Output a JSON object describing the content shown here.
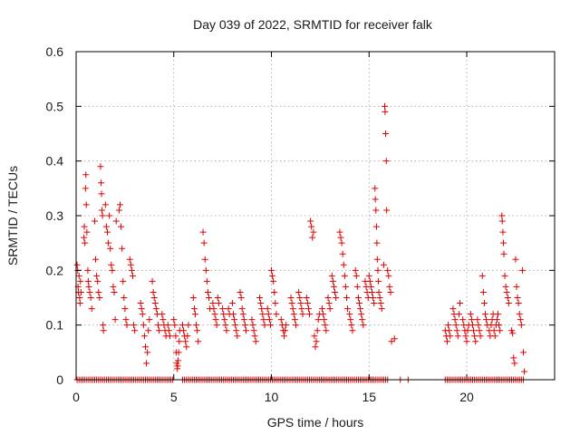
{
  "chart_data": {
    "type": "scatter",
    "title": "Day 039 of 2022, SRMTID for receiver falk",
    "xlabel": "GPS time / hours",
    "ylabel": "SRMTID / TECUs",
    "xlim": [
      0,
      24.5
    ],
    "ylim": [
      0,
      0.6
    ],
    "xticks": [
      0,
      5,
      10,
      15,
      20
    ],
    "xtick_labels": [
      "0",
      "5",
      "10",
      "15",
      "20"
    ],
    "yticks": [
      0,
      0.1,
      0.2,
      0.3,
      0.4,
      0.5,
      0.6
    ],
    "ytick_labels": [
      "0",
      "0.1",
      "0.2",
      "0.3",
      "0.4",
      "0.5",
      "0.6"
    ],
    "grid": true,
    "marker": "+",
    "color": "#e00000",
    "zero_points": {
      "y": 0,
      "x_ranges": [
        [
          0.05,
          4.95
        ],
        [
          5.45,
          15.95
        ],
        [
          16.6,
          16.65
        ],
        [
          17.0,
          17.05
        ],
        [
          18.9,
          22.95
        ]
      ],
      "step": 0.1
    },
    "points": [
      [
        0.05,
        0.21
      ],
      [
        0.08,
        0.2
      ],
      [
        0.1,
        0.17
      ],
      [
        0.12,
        0.16
      ],
      [
        0.15,
        0.19
      ],
      [
        0.18,
        0.15
      ],
      [
        0.2,
        0.14
      ],
      [
        0.22,
        0.18
      ],
      [
        0.25,
        0.16
      ],
      [
        0.4,
        0.26
      ],
      [
        0.42,
        0.28
      ],
      [
        0.45,
        0.25
      ],
      [
        0.48,
        0.35
      ],
      [
        0.5,
        0.375
      ],
      [
        0.52,
        0.32
      ],
      [
        0.55,
        0.27
      ],
      [
        0.6,
        0.2
      ],
      [
        0.62,
        0.18
      ],
      [
        0.65,
        0.17
      ],
      [
        0.7,
        0.16
      ],
      [
        0.75,
        0.15
      ],
      [
        0.8,
        0.13
      ],
      [
        0.95,
        0.29
      ],
      [
        1.0,
        0.22
      ],
      [
        1.05,
        0.19
      ],
      [
        1.1,
        0.18
      ],
      [
        1.15,
        0.16
      ],
      [
        1.2,
        0.15
      ],
      [
        1.25,
        0.39
      ],
      [
        1.28,
        0.36
      ],
      [
        1.3,
        0.34
      ],
      [
        1.32,
        0.31
      ],
      [
        1.35,
        0.3
      ],
      [
        1.38,
        0.1
      ],
      [
        1.4,
        0.09
      ],
      [
        1.5,
        0.32
      ],
      [
        1.55,
        0.28
      ],
      [
        1.6,
        0.27
      ],
      [
        1.65,
        0.25
      ],
      [
        1.7,
        0.3
      ],
      [
        1.75,
        0.24
      ],
      [
        1.8,
        0.21
      ],
      [
        1.85,
        0.2
      ],
      [
        1.9,
        0.17
      ],
      [
        1.95,
        0.16
      ],
      [
        2.0,
        0.11
      ],
      [
        2.05,
        0.29
      ],
      [
        2.2,
        0.31
      ],
      [
        2.25,
        0.32
      ],
      [
        2.3,
        0.28
      ],
      [
        2.35,
        0.24
      ],
      [
        2.4,
        0.18
      ],
      [
        2.45,
        0.15
      ],
      [
        2.5,
        0.13
      ],
      [
        2.55,
        0.11
      ],
      [
        2.6,
        0.1
      ],
      [
        2.75,
        0.22
      ],
      [
        2.8,
        0.21
      ],
      [
        2.85,
        0.2
      ],
      [
        2.9,
        0.19
      ],
      [
        2.95,
        0.1
      ],
      [
        3.0,
        0.09
      ],
      [
        3.3,
        0.14
      ],
      [
        3.35,
        0.13
      ],
      [
        3.4,
        0.12
      ],
      [
        3.45,
        0.1
      ],
      [
        3.5,
        0.08
      ],
      [
        3.55,
        0.06
      ],
      [
        3.6,
        0.03
      ],
      [
        3.65,
        0.05
      ],
      [
        3.7,
        0.09
      ],
      [
        3.75,
        0.11
      ],
      [
        3.9,
        0.18
      ],
      [
        3.95,
        0.16
      ],
      [
        4.0,
        0.15
      ],
      [
        4.05,
        0.14
      ],
      [
        4.1,
        0.13
      ],
      [
        4.15,
        0.12
      ],
      [
        4.2,
        0.1
      ],
      [
        4.25,
        0.09
      ],
      [
        4.4,
        0.12
      ],
      [
        4.45,
        0.11
      ],
      [
        4.5,
        0.1
      ],
      [
        4.55,
        0.09
      ],
      [
        4.6,
        0.08
      ],
      [
        4.7,
        0.1
      ],
      [
        4.75,
        0.09
      ],
      [
        4.8,
        0.08
      ],
      [
        5.0,
        0.11
      ],
      [
        5.05,
        0.1
      ],
      [
        5.1,
        0.08
      ],
      [
        5.12,
        0.05
      ],
      [
        5.15,
        0.03
      ],
      [
        5.18,
        0.02
      ],
      [
        5.2,
        0.025
      ],
      [
        5.22,
        0.035
      ],
      [
        5.25,
        0.05
      ],
      [
        5.28,
        0.07
      ],
      [
        5.3,
        0.09
      ],
      [
        5.45,
        0.1
      ],
      [
        5.5,
        0.09
      ],
      [
        5.55,
        0.08
      ],
      [
        5.6,
        0.07
      ],
      [
        5.65,
        0.06
      ],
      [
        5.7,
        0.08
      ],
      [
        5.75,
        0.1
      ],
      [
        6.0,
        0.15
      ],
      [
        6.05,
        0.13
      ],
      [
        6.1,
        0.12
      ],
      [
        6.15,
        0.1
      ],
      [
        6.2,
        0.09
      ],
      [
        6.25,
        0.07
      ],
      [
        6.5,
        0.27
      ],
      [
        6.55,
        0.25
      ],
      [
        6.6,
        0.22
      ],
      [
        6.65,
        0.2
      ],
      [
        6.7,
        0.18
      ],
      [
        6.75,
        0.16
      ],
      [
        6.8,
        0.15
      ],
      [
        6.85,
        0.13
      ],
      [
        7.0,
        0.14
      ],
      [
        7.05,
        0.13
      ],
      [
        7.1,
        0.12
      ],
      [
        7.15,
        0.11
      ],
      [
        7.2,
        0.1
      ],
      [
        7.25,
        0.15
      ],
      [
        7.3,
        0.14
      ],
      [
        7.5,
        0.13
      ],
      [
        7.55,
        0.12
      ],
      [
        7.6,
        0.11
      ],
      [
        7.65,
        0.1
      ],
      [
        7.7,
        0.09
      ],
      [
        7.8,
        0.13
      ],
      [
        7.85,
        0.12
      ],
      [
        8.0,
        0.14
      ],
      [
        8.05,
        0.12
      ],
      [
        8.1,
        0.11
      ],
      [
        8.15,
        0.1
      ],
      [
        8.2,
        0.09
      ],
      [
        8.25,
        0.08
      ],
      [
        8.4,
        0.16
      ],
      [
        8.45,
        0.15
      ],
      [
        8.5,
        0.13
      ],
      [
        8.55,
        0.12
      ],
      [
        8.6,
        0.11
      ],
      [
        8.65,
        0.1
      ],
      [
        8.7,
        0.09
      ],
      [
        9.0,
        0.11
      ],
      [
        9.05,
        0.1
      ],
      [
        9.1,
        0.09
      ],
      [
        9.15,
        0.08
      ],
      [
        9.2,
        0.07
      ],
      [
        9.4,
        0.15
      ],
      [
        9.45,
        0.14
      ],
      [
        9.5,
        0.13
      ],
      [
        9.55,
        0.12
      ],
      [
        9.6,
        0.11
      ],
      [
        9.65,
        0.1
      ],
      [
        9.8,
        0.13
      ],
      [
        9.85,
        0.12
      ],
      [
        9.9,
        0.11
      ],
      [
        9.95,
        0.1
      ],
      [
        10.0,
        0.2
      ],
      [
        10.05,
        0.19
      ],
      [
        10.1,
        0.18
      ],
      [
        10.15,
        0.16
      ],
      [
        10.2,
        0.14
      ],
      [
        10.25,
        0.12
      ],
      [
        10.5,
        0.11
      ],
      [
        10.55,
        0.1
      ],
      [
        10.6,
        0.09
      ],
      [
        10.65,
        0.08
      ],
      [
        10.7,
        0.09
      ],
      [
        10.75,
        0.1
      ],
      [
        11.0,
        0.15
      ],
      [
        11.05,
        0.14
      ],
      [
        11.1,
        0.13
      ],
      [
        11.15,
        0.12
      ],
      [
        11.2,
        0.11
      ],
      [
        11.25,
        0.1
      ],
      [
        11.4,
        0.16
      ],
      [
        11.45,
        0.15
      ],
      [
        11.5,
        0.14
      ],
      [
        11.55,
        0.13
      ],
      [
        11.6,
        0.12
      ],
      [
        11.8,
        0.15
      ],
      [
        11.85,
        0.14
      ],
      [
        11.9,
        0.13
      ],
      [
        11.95,
        0.12
      ],
      [
        12.0,
        0.29
      ],
      [
        12.05,
        0.28
      ],
      [
        12.1,
        0.26
      ],
      [
        12.15,
        0.27
      ],
      [
        12.2,
        0.08
      ],
      [
        12.25,
        0.06
      ],
      [
        12.3,
        0.07
      ],
      [
        12.35,
        0.09
      ],
      [
        12.4,
        0.11
      ],
      [
        12.45,
        0.12
      ],
      [
        12.6,
        0.13
      ],
      [
        12.65,
        0.12
      ],
      [
        12.7,
        0.11
      ],
      [
        12.75,
        0.1
      ],
      [
        12.8,
        0.09
      ],
      [
        12.9,
        0.15
      ],
      [
        12.95,
        0.14
      ],
      [
        13.0,
        0.13
      ],
      [
        13.1,
        0.19
      ],
      [
        13.15,
        0.18
      ],
      [
        13.2,
        0.17
      ],
      [
        13.25,
        0.16
      ],
      [
        13.3,
        0.15
      ],
      [
        13.5,
        0.27
      ],
      [
        13.55,
        0.26
      ],
      [
        13.6,
        0.25
      ],
      [
        13.65,
        0.23
      ],
      [
        13.7,
        0.21
      ],
      [
        13.75,
        0.19
      ],
      [
        13.8,
        0.17
      ],
      [
        13.85,
        0.15
      ],
      [
        13.9,
        0.13
      ],
      [
        14.0,
        0.12
      ],
      [
        14.05,
        0.11
      ],
      [
        14.1,
        0.1
      ],
      [
        14.15,
        0.09
      ],
      [
        14.3,
        0.2
      ],
      [
        14.35,
        0.19
      ],
      [
        14.4,
        0.17
      ],
      [
        14.45,
        0.15
      ],
      [
        14.5,
        0.14
      ],
      [
        14.55,
        0.13
      ],
      [
        14.6,
        0.12
      ],
      [
        14.65,
        0.11
      ],
      [
        14.7,
        0.1
      ],
      [
        14.8,
        0.18
      ],
      [
        14.85,
        0.17
      ],
      [
        14.9,
        0.16
      ],
      [
        14.95,
        0.15
      ],
      [
        15.0,
        0.19
      ],
      [
        15.05,
        0.18
      ],
      [
        15.1,
        0.17
      ],
      [
        15.15,
        0.16
      ],
      [
        15.2,
        0.15
      ],
      [
        15.25,
        0.14
      ],
      [
        15.3,
        0.35
      ],
      [
        15.32,
        0.33
      ],
      [
        15.35,
        0.31
      ],
      [
        15.38,
        0.28
      ],
      [
        15.4,
        0.25
      ],
      [
        15.42,
        0.22
      ],
      [
        15.45,
        0.2
      ],
      [
        15.48,
        0.18
      ],
      [
        15.5,
        0.16
      ],
      [
        15.55,
        0.15
      ],
      [
        15.6,
        0.14
      ],
      [
        15.65,
        0.13
      ],
      [
        15.75,
        0.21
      ],
      [
        15.8,
        0.5
      ],
      [
        15.82,
        0.49
      ],
      [
        15.85,
        0.45
      ],
      [
        15.88,
        0.4
      ],
      [
        15.9,
        0.31
      ],
      [
        15.95,
        0.2
      ],
      [
        16.0,
        0.19
      ],
      [
        16.05,
        0.17
      ],
      [
        16.1,
        0.16
      ],
      [
        16.15,
        0.07
      ],
      [
        16.3,
        0.075
      ],
      [
        18.9,
        0.09
      ],
      [
        18.95,
        0.08
      ],
      [
        19.0,
        0.07
      ],
      [
        19.05,
        0.1
      ],
      [
        19.1,
        0.09
      ],
      [
        19.15,
        0.08
      ],
      [
        19.3,
        0.13
      ],
      [
        19.35,
        0.12
      ],
      [
        19.4,
        0.11
      ],
      [
        19.45,
        0.1
      ],
      [
        19.5,
        0.09
      ],
      [
        19.55,
        0.08
      ],
      [
        19.6,
        0.12
      ],
      [
        19.65,
        0.14
      ],
      [
        19.8,
        0.11
      ],
      [
        19.85,
        0.1
      ],
      [
        19.9,
        0.09
      ],
      [
        19.95,
        0.08
      ],
      [
        20.0,
        0.07
      ],
      [
        20.05,
        0.09
      ],
      [
        20.1,
        0.1
      ],
      [
        20.2,
        0.12
      ],
      [
        20.25,
        0.11
      ],
      [
        20.3,
        0.1
      ],
      [
        20.35,
        0.09
      ],
      [
        20.4,
        0.08
      ],
      [
        20.45,
        0.07
      ],
      [
        20.55,
        0.11
      ],
      [
        20.6,
        0.1
      ],
      [
        20.65,
        0.09
      ],
      [
        20.7,
        0.08
      ],
      [
        20.8,
        0.19
      ],
      [
        20.85,
        0.16
      ],
      [
        20.9,
        0.14
      ],
      [
        20.95,
        0.12
      ],
      [
        21.0,
        0.11
      ],
      [
        21.05,
        0.1
      ],
      [
        21.15,
        0.09
      ],
      [
        21.2,
        0.08
      ],
      [
        21.25,
        0.1
      ],
      [
        21.3,
        0.11
      ],
      [
        21.35,
        0.12
      ],
      [
        21.4,
        0.09
      ],
      [
        21.45,
        0.08
      ],
      [
        21.5,
        0.1
      ],
      [
        21.55,
        0.11
      ],
      [
        21.6,
        0.12
      ],
      [
        21.65,
        0.1
      ],
      [
        21.7,
        0.09
      ],
      [
        21.8,
        0.3
      ],
      [
        21.82,
        0.29
      ],
      [
        21.85,
        0.27
      ],
      [
        21.88,
        0.25
      ],
      [
        21.9,
        0.23
      ],
      [
        21.95,
        0.19
      ],
      [
        22.0,
        0.17
      ],
      [
        22.05,
        0.16
      ],
      [
        22.1,
        0.15
      ],
      [
        22.15,
        0.14
      ],
      [
        22.3,
        0.09
      ],
      [
        22.35,
        0.085
      ],
      [
        22.4,
        0.04
      ],
      [
        22.45,
        0.03
      ],
      [
        22.5,
        0.22
      ],
      [
        22.55,
        0.17
      ],
      [
        22.6,
        0.15
      ],
      [
        22.65,
        0.14
      ],
      [
        22.7,
        0.12
      ],
      [
        22.75,
        0.11
      ],
      [
        22.8,
        0.1
      ],
      [
        22.85,
        0.2
      ],
      [
        22.9,
        0.05
      ],
      [
        22.95,
        0.015
      ]
    ]
  }
}
